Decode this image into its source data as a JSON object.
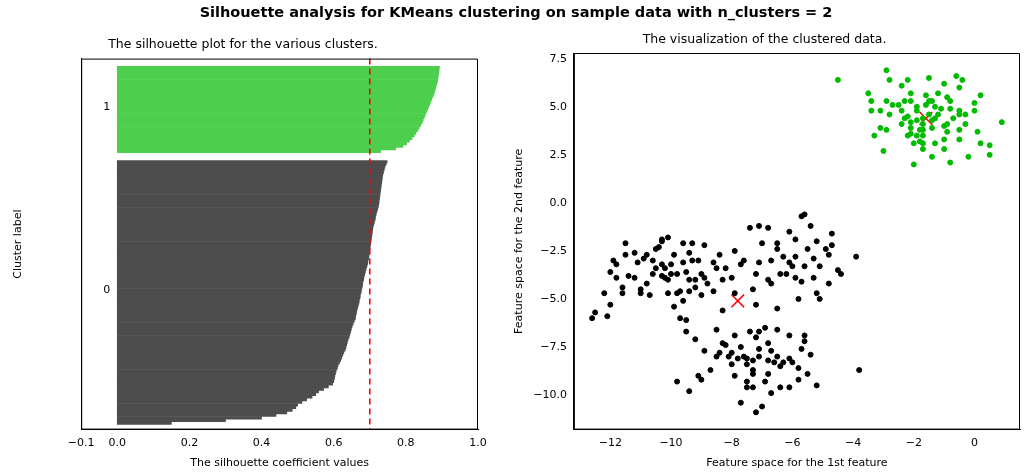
{
  "chart_data": [
    {
      "type": "other",
      "title": "Silhouette analysis for KMeans clustering on sample data with n_clusters = 2"
    },
    {
      "type": "bar",
      "orientation": "horizontal",
      "title": "The silhouette plot for the various clusters.",
      "xlabel": "The silhouette coefficient values",
      "ylabel": "Cluster label",
      "categories": [
        null,
        null,
        null,
        null,
        null,
        null,
        null,
        null,
        null,
        null,
        null,
        null,
        null,
        null,
        null,
        null,
        null,
        null,
        "1",
        null,
        null,
        null,
        null,
        null,
        null,
        null,
        null,
        null,
        null,
        null,
        null,
        null,
        null,
        null,
        null,
        null,
        null,
        null,
        null,
        null,
        null,
        null,
        null,
        null,
        null,
        null,
        null,
        null,
        null,
        null,
        null,
        null,
        null,
        null,
        null,
        null,
        null,
        null,
        null,
        null,
        null,
        null,
        null,
        null,
        null,
        null,
        null,
        null,
        null,
        null,
        null,
        null,
        null,
        null,
        null,
        null,
        null,
        null,
        null,
        null,
        null,
        null,
        null,
        null,
        null,
        null,
        null,
        null,
        "0",
        null,
        null,
        null,
        null,
        null,
        null,
        null,
        null,
        null,
        null,
        null,
        null,
        null,
        null,
        null,
        null,
        null,
        null,
        null,
        null,
        null,
        null,
        null,
        null,
        null,
        null,
        null,
        null,
        null,
        null,
        null,
        null,
        null,
        null,
        null,
        null,
        null,
        null,
        null,
        null,
        null,
        null,
        null,
        null,
        null,
        null,
        null,
        null,
        null,
        null,
        null,
        null,
        null
      ],
      "xlim": [
        -0.1,
        1.0
      ],
      "xticks": [
        {
          "value": -0.1,
          "label": "−0.1"
        },
        {
          "value": 0,
          "label": "0.0"
        },
        {
          "value": 0.2,
          "label": "0.2"
        },
        {
          "value": 0.4,
          "label": "0.4"
        },
        {
          "value": 0.6,
          "label": "0.6"
        },
        {
          "value": 0.8,
          "label": "0.8"
        },
        {
          "value": 1.0,
          "label": "1.0"
        }
      ],
      "series": [
        {
          "color": "#4dcf4d",
          "values": [
            null,
            null,
            null,
            0.893,
            0.892,
            0.891,
            0.89,
            0.889,
            0.888,
            0.886,
            0.884,
            0.882,
            0.88,
            0.878,
            0.875,
            0.872,
            0.869,
            0.866,
            0.863,
            0.86,
            0.857,
            0.854,
            0.851,
            0.848,
            0.845,
            0.841,
            0.837,
            0.833,
            0.828,
            0.823,
            0.817,
            0.81,
            0.802,
            0.792,
            0.772,
            0.73,
            null,
            null,
            null,
            null,
            null,
            null,
            null,
            null,
            null,
            null,
            null,
            null,
            null,
            null,
            null,
            null,
            null,
            null,
            null,
            null,
            null,
            null,
            null,
            null,
            null,
            null,
            null,
            null,
            null,
            null,
            null,
            null,
            null,
            null,
            null,
            null,
            null,
            null,
            null,
            null,
            null,
            null,
            null,
            null,
            null,
            null,
            null,
            null,
            null,
            null,
            null,
            null,
            null,
            null,
            null,
            null,
            null,
            null,
            null,
            null,
            null,
            null,
            null,
            null,
            null,
            null,
            null,
            null,
            null,
            null,
            null,
            null,
            null,
            null,
            null,
            null,
            null,
            null,
            null,
            null,
            null,
            null,
            null,
            null,
            null,
            null,
            null,
            null,
            null,
            null,
            null,
            null,
            null,
            null,
            null,
            null,
            null,
            null,
            null,
            null,
            null,
            null,
            null,
            null,
            null,
            null
          ]
        },
        {
          "color": "#4d4d4d",
          "values": [
            null,
            null,
            null,
            null,
            null,
            null,
            null,
            null,
            null,
            null,
            null,
            null,
            null,
            null,
            null,
            null,
            null,
            null,
            null,
            null,
            null,
            null,
            null,
            null,
            null,
            null,
            null,
            null,
            null,
            null,
            null,
            null,
            null,
            null,
            null,
            null,
            null,
            null,
            null,
            0.748,
            0.745,
            0.742,
            0.74,
            0.738,
            0.736,
            0.735,
            0.734,
            0.733,
            0.732,
            0.731,
            0.73,
            0.729,
            0.728,
            0.727,
            0.726,
            0.725,
            0.724,
            0.722,
            0.72,
            0.718,
            0.716,
            0.715,
            0.713,
            0.711,
            0.709,
            0.708,
            0.707,
            0.706,
            0.705,
            0.704,
            0.703,
            0.702,
            0.701,
            0.7,
            0.699,
            0.698,
            0.697,
            0.695,
            0.694,
            0.692,
            0.69,
            0.688,
            0.686,
            0.684,
            0.683,
            0.681,
            0.68,
            0.679,
            0.677,
            0.676,
            0.674,
            0.673,
            0.671,
            0.67,
            0.668,
            0.666,
            0.664,
            0.663,
            0.661,
            0.66,
            0.657,
            0.654,
            0.651,
            0.649,
            0.647,
            0.645,
            0.643,
            0.64,
            0.638,
            0.636,
            0.634,
            0.632,
            0.628,
            0.625,
            0.622,
            0.619,
            0.616,
            0.612,
            0.61,
            0.607,
            0.605,
            0.603,
            0.602,
            0.6,
            0.597,
            0.585,
            0.572,
            0.558,
            0.55,
            0.54,
            0.525,
            0.512,
            0.5,
            0.495,
            0.485,
            0.47,
            0.44,
            0.4,
            0.3,
            0.15,
            null,
            null
          ]
        }
      ],
      "ref_lines": [
        {
          "axis": "x",
          "value": 0.7,
          "color": "#ff0000",
          "line_style": "dashed"
        }
      ]
    },
    {
      "type": "scatter",
      "title": "The visualization of the clustered data.",
      "xlabel": "Feature space for the 1st feature",
      "ylabel": "Feature space for the 2nd feature",
      "marker": "circle",
      "xlim": [
        -13.2,
        1.5
      ],
      "ylim": [
        -11.8,
        7.8
      ],
      "xticks": [
        {
          "value": -12,
          "label": "−12"
        },
        {
          "value": -10,
          "label": "−10"
        },
        {
          "value": -8,
          "label": "−8"
        },
        {
          "value": -6,
          "label": "−6"
        },
        {
          "value": -4,
          "label": "−4"
        },
        {
          "value": -2,
          "label": "−2"
        },
        {
          "value": 0,
          "label": "0"
        }
      ],
      "yticks": [
        {
          "value": -10,
          "label": "−10.0"
        },
        {
          "value": -7.5,
          "label": "−7.5"
        },
        {
          "value": -5,
          "label": "−5.0"
        },
        {
          "value": -2.5,
          "label": "−2.5"
        },
        {
          "value": 0,
          "label": "0.0"
        },
        {
          "value": 2.5,
          "label": "2.5"
        },
        {
          "value": 5,
          "label": "5.0"
        },
        {
          "value": 7.5,
          "label": "7.5"
        }
      ],
      "series": [
        {
          "color": "#000000",
          "x": [
            -12.6,
            -12.5,
            -12.1,
            -12.2,
            -12.0,
            -11.9,
            -12.0,
            -11.8,
            -11.8,
            -11.6,
            -11.6,
            -11.5,
            -11.5,
            -11.4,
            -11.2,
            -11.2,
            -11.1,
            -11.0,
            -11.0,
            -10.9,
            -10.8,
            -10.8,
            -10.7,
            -10.6,
            -10.6,
            -10.5,
            -10.5,
            -10.4,
            -10.3,
            -10.3,
            -10.3,
            -10.3,
            -10.2,
            -10.2,
            -10.1,
            -10.1,
            -10.1,
            -10.0,
            -10.0,
            -9.9,
            -9.9,
            -9.8,
            -9.8,
            -9.7,
            -9.7,
            -9.6,
            -9.6,
            -9.6,
            -9.5,
            -9.5,
            -9.5,
            -9.4,
            -9.4,
            -9.4,
            -9.3,
            -9.3,
            -9.2,
            -9.2,
            -9.1,
            -9.0,
            -9.0,
            -8.9,
            -8.9,
            -8.8,
            -8.6,
            -8.6,
            -8.5,
            -8.4,
            -8.3,
            -8.3,
            -8.2,
            -8.0,
            -7.9,
            -7.9,
            -7.7,
            -7.6,
            -7.4,
            -7.3,
            -7.1,
            -7.2,
            -7.0,
            -6.8,
            -7.2,
            -6.7,
            -6.7,
            -6.5,
            -6.5,
            -6.4,
            -6.3,
            -6.1,
            -6.1,
            -5.9,
            -5.9,
            -5.9,
            -5.7,
            -5.6,
            -5.8,
            -5.6,
            -5.5,
            -5.4,
            -5.3,
            -5.2,
            -5.2,
            -5.1,
            -5.1,
            -4.9,
            -4.8,
            -4.8,
            -4.7,
            -4.7,
            -4.5,
            -4.4,
            -3.9,
            -7.1,
            -6.8,
            -6.0,
            -6.2,
            -5.7,
            -6.5,
            -5.3,
            -9.8,
            -9.4,
            -9.2,
            -9.1,
            -9.0,
            -8.9,
            -8.7,
            -8.5,
            -8.5,
            -8.4,
            -8.3,
            -8.2,
            -8.1,
            -8.0,
            -8.0,
            -7.9,
            -7.9,
            -7.8,
            -7.7,
            -7.7,
            -7.6,
            -7.5,
            -7.5,
            -7.5,
            -7.4,
            -7.3,
            -7.3,
            -7.3,
            -7.2,
            -7.2,
            -7.1,
            -7.1,
            -7.0,
            -6.9,
            -6.9,
            -6.8,
            -6.8,
            -6.7,
            -6.7,
            -6.6,
            -6.5,
            -6.4,
            -6.4,
            -6.3,
            -6.1,
            -6.1,
            -6.1,
            -6.0,
            -5.8,
            -5.8,
            -5.7,
            -5.6,
            -5.6,
            -5.5,
            -5.4,
            -5.2,
            -3.8,
            -7.5,
            -7.1,
            -6.5,
            -7.3,
            -6.8
          ],
          "values": [
            -6.0,
            -5.7,
            -5.9,
            -4.7,
            -5.3,
            -3.0,
            -3.6,
            -3.2,
            -3.9,
            -4.7,
            -4.4,
            -2.7,
            -2.1,
            -3.8,
            -2.6,
            -3.9,
            -3.1,
            -4.5,
            -4.7,
            -2.9,
            -2.7,
            -4.2,
            -4.8,
            -3.0,
            -3.7,
            -3.4,
            -2.4,
            -2.3,
            -1.9,
            -2.0,
            -3.2,
            -3.8,
            -3.4,
            -3.9,
            -4.0,
            -1.8,
            -4.7,
            -3.7,
            -3.2,
            -5.4,
            -2.7,
            -4.7,
            -3.7,
            -6.0,
            -4.6,
            -3.1,
            -2.1,
            -5.1,
            -6.1,
            -6.7,
            -3.6,
            -4.6,
            -4.0,
            -2.6,
            -3.0,
            -2.1,
            -4.0,
            -4.4,
            -3.0,
            -4.8,
            -3.7,
            -3.9,
            -2.2,
            -4.2,
            -4.6,
            -3.1,
            -3.4,
            -2.7,
            -5.6,
            -4.0,
            -3.4,
            -3.9,
            -2.5,
            -4.7,
            -3.2,
            -3.0,
            -1.3,
            -4.5,
            -1.2,
            -3.7,
            -2.1,
            -1.3,
            -5.3,
            -3.0,
            -4.2,
            -2.1,
            -5.5,
            -3.7,
            -2.8,
            -1.5,
            -3.1,
            -3.9,
            -1.9,
            -2.8,
            -0.7,
            -0.6,
            -5.0,
            -3.3,
            -2.4,
            -1.2,
            -2.9,
            -4.7,
            -2.0,
            -5.0,
            -3.3,
            -2.4,
            -2.7,
            -4.2,
            -1.6,
            -2.2,
            -3.5,
            -3.7,
            -2.8,
            -3.1,
            -4.0,
            -3.3,
            -3.7,
            -4.1,
            -2.4,
            -3.9,
            -9.3,
            -9.8,
            -7.1,
            -9.0,
            -9.2,
            -7.7,
            -8.7,
            -8.0,
            -6.6,
            -7.8,
            -7.3,
            -7.4,
            -8.0,
            -7.8,
            -8.4,
            -6.9,
            -9.0,
            -8.1,
            -10.4,
            -7.5,
            -8.0,
            -8.4,
            -9.3,
            -9.6,
            -6.7,
            -8.2,
            -9.6,
            -8.9,
            -10.9,
            -7.0,
            -8.0,
            -6.7,
            -10.6,
            -9.3,
            -6.5,
            -8.2,
            -8.9,
            -9.9,
            -7.7,
            -8.3,
            -6.6,
            -8.5,
            -9.6,
            -8.3,
            -6.9,
            -9.6,
            -8.1,
            -8.3,
            -9.2,
            -8.6,
            -7.6,
            -7.2,
            -6.9,
            -8.9,
            -7.9,
            -9.5,
            -8.7,
            -8.1,
            -7.6,
            -8.0,
            -8.7,
            -7.3
          ]
        },
        {
          "color": "#00bb00",
          "x": [
            -4.5,
            -2.9,
            -2.8,
            -2.2,
            -1.5,
            -0.6,
            -0.4,
            -1.0,
            -0.5,
            -3.5,
            -2.4,
            -2.1,
            -1.2,
            -3.4,
            -2.9,
            -2.5,
            -2.3,
            -2.1,
            -1.6,
            -1.5,
            -1.4,
            -0.9,
            -0.8,
            0.0,
            0.2,
            -3.4,
            -3.1,
            -2.8,
            -2.4,
            -2.2,
            -1.9,
            -1.9,
            -1.6,
            -1.3,
            -1.1,
            -1.2,
            -0.8,
            -0.5,
            -0.5,
            -0.3,
            0.0,
            0.9,
            -2.4,
            -2.3,
            -2.1,
            -2.1,
            -1.9,
            -1.7,
            -1.4,
            -1.3,
            -1.0,
            -0.9,
            -0.7,
            -0.3,
            -3.1,
            -2.9,
            -2.2,
            -2.1,
            -1.9,
            -1.8,
            -1.7,
            -1.7,
            -1.4,
            -0.9,
            -0.5,
            0.1,
            -3.3,
            -1.8,
            -1.7,
            -2.0,
            -1.3,
            -1.0,
            -0.5,
            0.2,
            0.5,
            -3.0,
            -1.7,
            -1.4,
            -1.0,
            -0.8,
            -0.2,
            0.5,
            -2.0,
            -1.5,
            -1.7,
            -2.7
          ],
          "values": [
            6.4,
            6.9,
            6.4,
            6.4,
            6.5,
            6.6,
            6.4,
            6.2,
            6.0,
            5.7,
            6.1,
            5.7,
            5.7,
            5.3,
            5.3,
            5.1,
            5.3,
            5.3,
            5.6,
            5.3,
            5.3,
            5.5,
            5.3,
            5.2,
            5.6,
            4.8,
            4.8,
            4.6,
            4.8,
            4.5,
            5.0,
            4.8,
            5.1,
            5.0,
            4.9,
            4.6,
            4.9,
            4.8,
            4.6,
            4.6,
            4.8,
            4.2,
            4.1,
            4.4,
            4.2,
            3.9,
            4.3,
            4.1,
            4.3,
            4.4,
            4.0,
            4.1,
            4.4,
            4.1,
            3.9,
            3.8,
            3.5,
            3.6,
            3.5,
            3.8,
            3.5,
            3.8,
            3.9,
            3.7,
            3.8,
            3.7,
            3.5,
            3.2,
            3.1,
            3.1,
            3.1,
            3.3,
            3.3,
            3.1,
            3.0,
            2.7,
            2.8,
            2.4,
            2.8,
            2.1,
            2.4,
            2.5,
            2.0,
            4.6,
            4.4,
            5.1
          ]
        },
        {
          "color": "#ff0000",
          "marker": "cross",
          "x": [
            -7.8,
            -1.6
          ],
          "values": [
            -5.1,
            4.4
          ]
        }
      ]
    }
  ]
}
